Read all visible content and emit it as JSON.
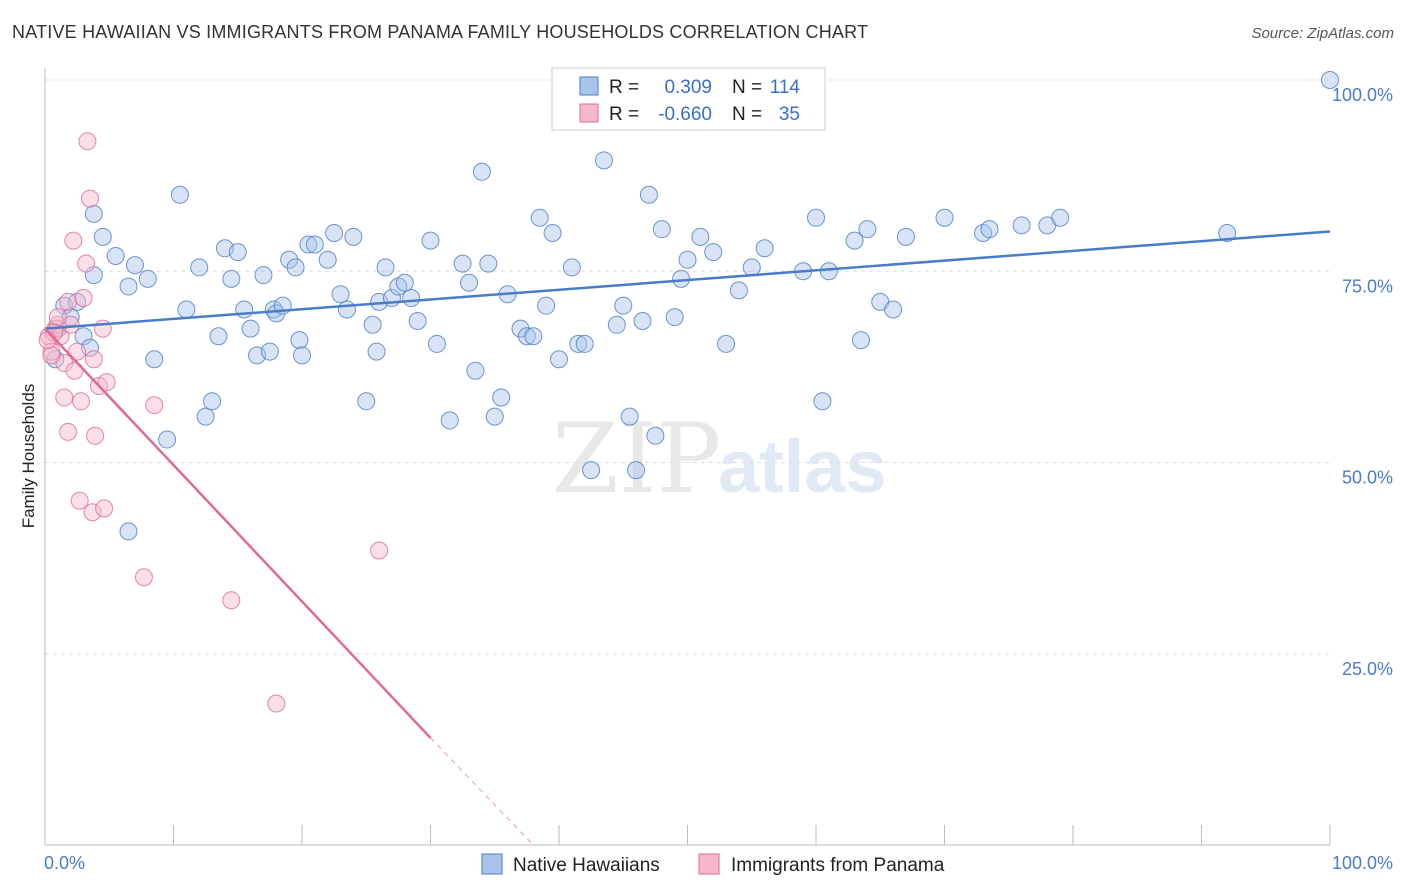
{
  "title": "NATIVE HAWAIIAN VS IMMIGRANTS FROM PANAMA FAMILY HOUSEHOLDS CORRELATION CHART",
  "source": "Source: ZipAtlas.com",
  "colors": {
    "blue": "#4a7cc7",
    "blue_fill": "#a9c4ea",
    "pink": "#e06a96",
    "pink_fill": "#f4b8cd"
  },
  "chart_data": {
    "type": "scatter",
    "ylabel": "Family Households",
    "xlim": [
      0,
      100
    ],
    "ylim": [
      0,
      100
    ],
    "x_tick_labels": [
      "0.0%",
      "100.0%"
    ],
    "y_ticks": [
      25,
      50,
      75,
      100
    ],
    "y_tick_labels": [
      "25.0%",
      "50.0%",
      "75.0%",
      "100.0%"
    ],
    "grid": "horizontal dashed",
    "legend": {
      "placement": "top-center",
      "rows": [
        {
          "r_label": "R =",
          "r_value": "0.309",
          "n_label": "N =",
          "n_value": "114"
        },
        {
          "r_label": "R =",
          "r_value": "-0.660",
          "n_label": "N =",
          "n_value": "35"
        }
      ]
    },
    "series": [
      {
        "name": "Native Hawaiians",
        "color": "#4a7cc7",
        "trend": {
          "x": [
            0,
            100
          ],
          "y": [
            67.5,
            80.2
          ]
        },
        "points": [
          [
            1.0,
            67.5
          ],
          [
            1.5,
            70.5
          ],
          [
            2.0,
            69.0
          ],
          [
            2.5,
            71.0
          ],
          [
            3.0,
            66.5
          ],
          [
            3.5,
            65.0
          ],
          [
            3.8,
            82.5
          ],
          [
            3.8,
            74.5
          ],
          [
            4.5,
            79.5
          ],
          [
            5.5,
            77.0
          ],
          [
            6.5,
            73.0
          ],
          [
            7.0,
            75.8
          ],
          [
            8.0,
            74.0
          ],
          [
            8.5,
            63.5
          ],
          [
            9.5,
            53.0
          ],
          [
            10.5,
            85.0
          ],
          [
            11.0,
            70.0
          ],
          [
            12.0,
            75.5
          ],
          [
            12.5,
            56.0
          ],
          [
            13.0,
            58.0
          ],
          [
            13.5,
            66.5
          ],
          [
            14.0,
            78.0
          ],
          [
            14.5,
            74.0
          ],
          [
            15.0,
            77.5
          ],
          [
            15.5,
            70.0
          ],
          [
            16.0,
            67.5
          ],
          [
            16.5,
            64.0
          ],
          [
            17.0,
            74.5
          ],
          [
            17.5,
            64.5
          ],
          [
            17.8,
            70.0
          ],
          [
            18.0,
            69.5
          ],
          [
            18.5,
            70.5
          ],
          [
            19.0,
            76.5
          ],
          [
            19.5,
            75.5
          ],
          [
            19.8,
            66.0
          ],
          [
            20.0,
            64.0
          ],
          [
            20.5,
            78.5
          ],
          [
            21.0,
            78.5
          ],
          [
            22.0,
            76.5
          ],
          [
            22.5,
            80.0
          ],
          [
            23.0,
            72.0
          ],
          [
            23.5,
            70.0
          ],
          [
            24.0,
            79.5
          ],
          [
            25.0,
            58.0
          ],
          [
            25.5,
            68.0
          ],
          [
            25.8,
            64.5
          ],
          [
            26.0,
            71.0
          ],
          [
            26.5,
            75.5
          ],
          [
            27.0,
            71.5
          ],
          [
            27.5,
            73.0
          ],
          [
            28.0,
            73.5
          ],
          [
            28.5,
            71.5
          ],
          [
            29.0,
            68.5
          ],
          [
            30.0,
            79.0
          ],
          [
            30.5,
            65.5
          ],
          [
            31.5,
            55.5
          ],
          [
            32.5,
            76.0
          ],
          [
            33.0,
            73.5
          ],
          [
            33.5,
            62.0
          ],
          [
            34.0,
            88.0
          ],
          [
            34.5,
            76.0
          ],
          [
            35.0,
            56.0
          ],
          [
            35.5,
            58.5
          ],
          [
            36.0,
            72.0
          ],
          [
            37.0,
            67.5
          ],
          [
            37.5,
            66.5
          ],
          [
            38.0,
            66.5
          ],
          [
            38.5,
            82.0
          ],
          [
            39.0,
            70.5
          ],
          [
            39.5,
            80.0
          ],
          [
            40.0,
            63.5
          ],
          [
            41.0,
            75.5
          ],
          [
            41.5,
            65.5
          ],
          [
            42.0,
            65.5
          ],
          [
            42.5,
            49.0
          ],
          [
            43.5,
            89.5
          ],
          [
            44.5,
            68.0
          ],
          [
            45.0,
            70.5
          ],
          [
            45.5,
            56.0
          ],
          [
            46.0,
            49.0
          ],
          [
            46.5,
            68.5
          ],
          [
            47.0,
            85.0
          ],
          [
            47.5,
            53.5
          ],
          [
            48.0,
            80.5
          ],
          [
            49.0,
            69.0
          ],
          [
            49.5,
            74.0
          ],
          [
            50.0,
            76.5
          ],
          [
            51.0,
            79.5
          ],
          [
            52.0,
            77.5
          ],
          [
            53.0,
            65.5
          ],
          [
            54.0,
            72.5
          ],
          [
            55.0,
            75.5
          ],
          [
            56.0,
            78.0
          ],
          [
            59.0,
            75.0
          ],
          [
            60.0,
            82.0
          ],
          [
            60.5,
            58.0
          ],
          [
            61.0,
            75.0
          ],
          [
            63.0,
            79.0
          ],
          [
            63.5,
            66.0
          ],
          [
            64.0,
            80.5
          ],
          [
            65.0,
            71.0
          ],
          [
            66.0,
            70.0
          ],
          [
            67.0,
            79.5
          ],
          [
            70.0,
            82.0
          ],
          [
            73.0,
            80.0
          ],
          [
            73.5,
            80.5
          ],
          [
            76.0,
            81.0
          ],
          [
            78.0,
            81.0
          ],
          [
            79.0,
            82.0
          ],
          [
            92.0,
            80.0
          ],
          [
            100.0,
            100.0
          ],
          [
            6.5,
            41.0
          ],
          [
            0.8,
            63.5
          ]
        ]
      },
      {
        "name": "Immigrants from Panama",
        "color": "#e06a96",
        "trend": {
          "x": [
            0,
            30
          ],
          "y": [
            67.5,
            14.0
          ]
        },
        "trend_dashed": {
          "x": [
            30,
            38
          ],
          "y": [
            14.0,
            0.0
          ]
        },
        "points": [
          [
            0.3,
            66.5
          ],
          [
            0.5,
            64.5
          ],
          [
            0.8,
            67.5
          ],
          [
            1.0,
            68.0
          ],
          [
            1.2,
            66.5
          ],
          [
            1.5,
            63.0
          ],
          [
            1.5,
            58.5
          ],
          [
            1.8,
            54.0
          ],
          [
            1.8,
            71.0
          ],
          [
            2.0,
            68.0
          ],
          [
            2.2,
            79.0
          ],
          [
            2.3,
            62.0
          ],
          [
            2.5,
            64.5
          ],
          [
            2.7,
            45.0
          ],
          [
            2.8,
            58.0
          ],
          [
            3.0,
            71.5
          ],
          [
            3.2,
            76.0
          ],
          [
            3.3,
            92.0
          ],
          [
            3.5,
            84.5
          ],
          [
            3.7,
            43.5
          ],
          [
            3.8,
            63.5
          ],
          [
            3.9,
            53.5
          ],
          [
            4.2,
            60.0
          ],
          [
            4.5,
            67.5
          ],
          [
            4.6,
            44.0
          ],
          [
            4.8,
            60.5
          ],
          [
            7.7,
            35.0
          ],
          [
            8.5,
            57.5
          ],
          [
            14.5,
            32.0
          ],
          [
            18.0,
            18.5
          ],
          [
            26.0,
            38.5
          ],
          [
            0.5,
            64.0
          ],
          [
            1.0,
            69.0
          ],
          [
            0.7,
            67.0
          ],
          [
            0.2,
            66.0
          ]
        ]
      }
    ]
  },
  "bottom_legend": [
    "Native Hawaiians",
    "Immigrants from Panama"
  ],
  "watermark": "ZIPatlas"
}
